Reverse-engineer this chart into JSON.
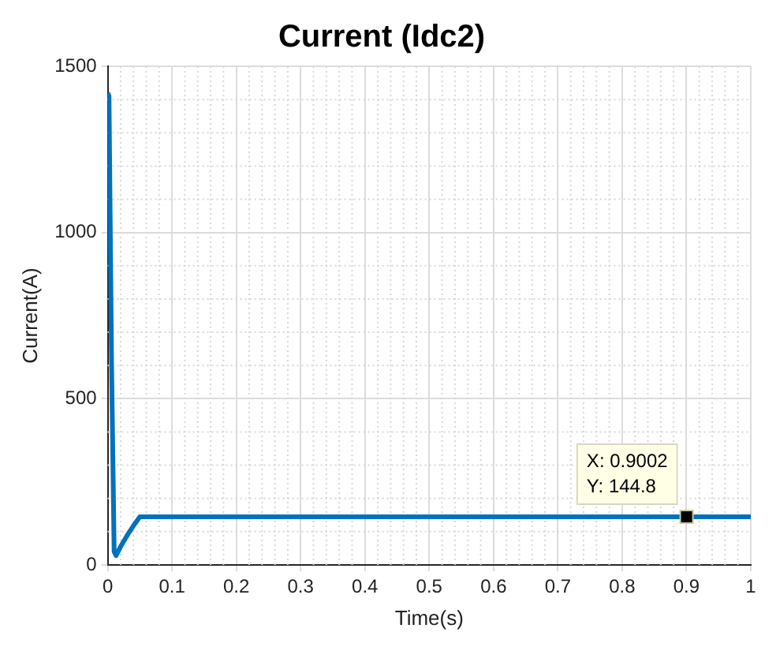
{
  "chart_data": {
    "type": "line",
    "title": "Current (Idc2)",
    "xlabel": "Time(s)",
    "ylabel": "Current(A)",
    "x": [
      0,
      0.002,
      0.006,
      0.01,
      0.013,
      0.02,
      0.03,
      0.04,
      0.05,
      0.1,
      0.2,
      0.3,
      0.4,
      0.5,
      0.6,
      0.7,
      0.8,
      0.9,
      0.9002,
      1
    ],
    "series": [
      {
        "color": "#0072bd",
        "values": [
          1420,
          1410,
          600,
          40,
          28,
          55,
          88,
          118,
          145,
          145,
          145,
          145,
          145,
          145,
          145,
          145,
          145,
          145,
          144.8,
          145
        ]
      }
    ],
    "xlim": [
      0,
      1
    ],
    "xticks": [
      0,
      0.1,
      0.2,
      0.3,
      0.4,
      0.5,
      0.6,
      0.7,
      0.8,
      0.9,
      1
    ],
    "ylim": [
      0,
      1500
    ],
    "yticks": [
      0,
      500,
      1000,
      1500
    ],
    "grid": true,
    "legend": false,
    "marker": "none",
    "line_style": "solid",
    "annotations": [
      {
        "text": "X: 0.9002\nY: 144.8",
        "x": 0.9002,
        "y": 144.8
      }
    ]
  }
}
